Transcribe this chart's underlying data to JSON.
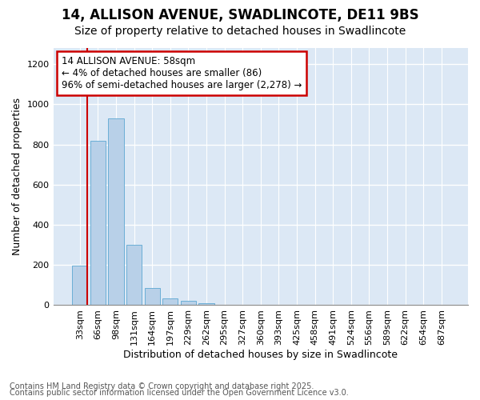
{
  "title_line1": "14, ALLISON AVENUE, SWADLINCOTE, DE11 9BS",
  "title_line2": "Size of property relative to detached houses in Swadlincote",
  "xlabel": "Distribution of detached houses by size in Swadlincote",
  "ylabel": "Number of detached properties",
  "categories": [
    "33sqm",
    "66sqm",
    "98sqm",
    "131sqm",
    "164sqm",
    "197sqm",
    "229sqm",
    "262sqm",
    "295sqm",
    "327sqm",
    "360sqm",
    "393sqm",
    "425sqm",
    "458sqm",
    "491sqm",
    "524sqm",
    "556sqm",
    "589sqm",
    "622sqm",
    "654sqm",
    "687sqm"
  ],
  "values": [
    197,
    820,
    930,
    300,
    85,
    35,
    20,
    10,
    0,
    0,
    0,
    0,
    0,
    0,
    0,
    0,
    0,
    0,
    0,
    0,
    0
  ],
  "bar_color": "#b8d0e8",
  "bar_edge_color": "#6baed6",
  "annotation_text": "14 ALLISON AVENUE: 58sqm\n← 4% of detached houses are smaller (86)\n96% of semi-detached houses are larger (2,278) →",
  "annotation_box_facecolor": "#ffffff",
  "annotation_box_edgecolor": "#cc0000",
  "ylim": [
    0,
    1280
  ],
  "yticks": [
    0,
    200,
    400,
    600,
    800,
    1000,
    1200
  ],
  "plot_bg_color": "#dce8f5",
  "fig_bg_color": "#ffffff",
  "grid_color": "#ffffff",
  "red_line_x": 0.95,
  "footer_line1": "Contains HM Land Registry data © Crown copyright and database right 2025.",
  "footer_line2": "Contains public sector information licensed under the Open Government Licence v3.0.",
  "title_fontsize": 12,
  "subtitle_fontsize": 10,
  "axis_label_fontsize": 9,
  "tick_fontsize": 8,
  "annotation_fontsize": 8.5,
  "footer_fontsize": 7
}
